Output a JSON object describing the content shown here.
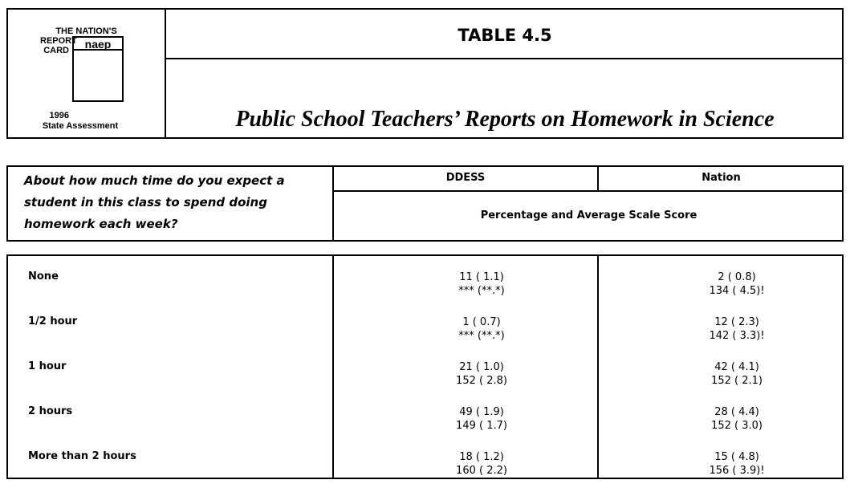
{
  "logo": {
    "line1": "THE NATION'S",
    "line2": "REPORT",
    "line3": "CARD",
    "badge": "naep",
    "year": "1996",
    "line4": "State Assessment"
  },
  "header": {
    "title": "TABLE 4.5",
    "subtitle": "Public School Teachers’ Reports on Homework in Science"
  },
  "table": {
    "question": "About how much time do you expect a student in this class to spend doing homework each week?",
    "columns": [
      "DDESS",
      "Nation"
    ],
    "subheader": "Percentage and Average Scale Score",
    "rows": [
      {
        "label": "None",
        "ddess": [
          "11 ( 1.1)",
          "*** (**.*)"
        ],
        "nation": [
          "2 ( 0.8)",
          "134 ( 4.5)!"
        ]
      },
      {
        "label": "1/2 hour",
        "ddess": [
          "1 ( 0.7)",
          "*** (**.*)"
        ],
        "nation": [
          "12 ( 2.3)",
          "142 ( 3.3)!"
        ]
      },
      {
        "label": "1 hour",
        "ddess": [
          "21 ( 1.0)",
          "152 ( 2.8)"
        ],
        "nation": [
          "42 ( 4.1)",
          "152 ( 2.1)"
        ]
      },
      {
        "label": "2 hours",
        "ddess": [
          "49 ( 1.9)",
          "149 ( 1.7)"
        ],
        "nation": [
          "28 ( 4.4)",
          "152 ( 3.0)"
        ]
      },
      {
        "label": "More than 2 hours",
        "ddess": [
          "18 ( 1.2)",
          "160 ( 2.2)"
        ],
        "nation": [
          "15 ( 4.8)",
          "156 ( 3.9)!"
        ]
      }
    ]
  }
}
